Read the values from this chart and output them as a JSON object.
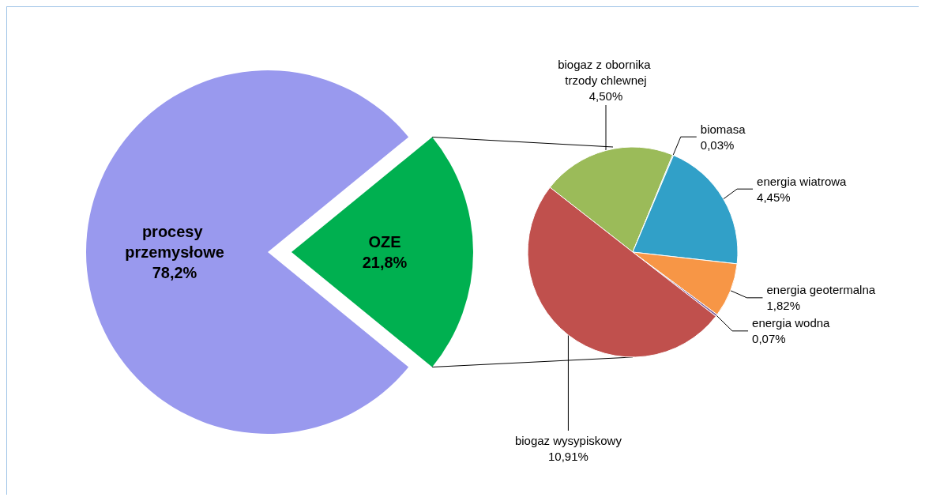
{
  "chart_data": [
    {
      "type": "pie",
      "categories": [
        "procesy przemysłowe",
        "OZE"
      ],
      "values": [
        78.2,
        21.8
      ],
      "colors": [
        "#9999ee",
        "#00b050"
      ],
      "value_labels": [
        "78,2%",
        "21,8%"
      ]
    },
    {
      "type": "pie",
      "categories": [
        "biogaz z obornika trzody chlewnej",
        "biomasa",
        "energia wiatrowa",
        "energia geotermalna",
        "energia wodna",
        "biogaz wysypiskowy"
      ],
      "values": [
        4.5,
        0.03,
        4.45,
        1.82,
        0.07,
        10.91
      ],
      "colors": [
        "#9bbb59",
        "#4bacc6",
        "#31a0c8",
        "#f79646",
        "#8064a2",
        "#c0504d"
      ],
      "value_labels": [
        "4,50%",
        "0,03%",
        "4,45%",
        "1,82%",
        "0,07%",
        "10,91%"
      ]
    }
  ]
}
